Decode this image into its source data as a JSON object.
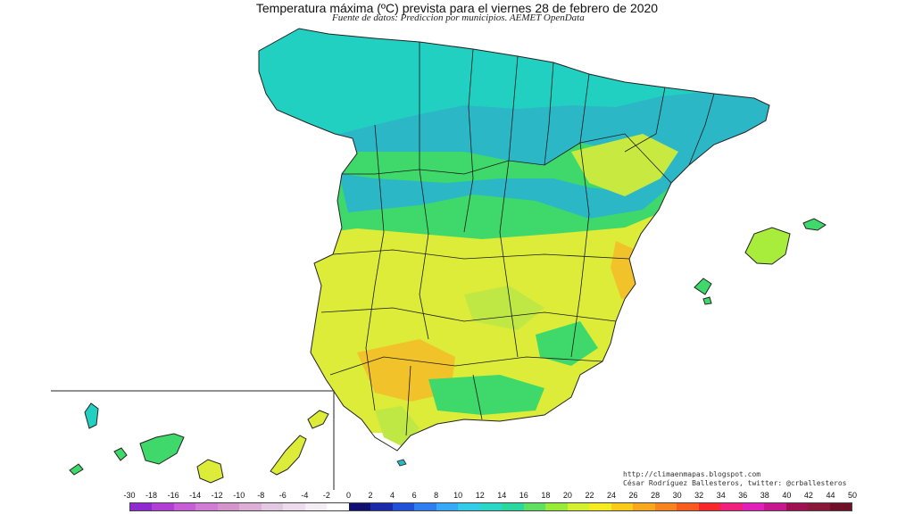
{
  "title": "Temperatura máxima (ºC) prevista para el viernes 28 de febrero de 2020",
  "subtitle": "Fuente de datos: Prediccion por municipios. AEMET OpenData",
  "credits": {
    "url": "http://climaenmapas.blogspot.com",
    "author": "César Rodríguez Ballesteros, twitter: @crballesteros"
  },
  "legend": {
    "labels": [
      "-30",
      "-18",
      "-16",
      "-14",
      "-12",
      "-10",
      "-8",
      "-6",
      "-4",
      "-2",
      "0",
      "2",
      "4",
      "6",
      "8",
      "10",
      "12",
      "14",
      "16",
      "18",
      "20",
      "22",
      "24",
      "26",
      "28",
      "30",
      "32",
      "34",
      "36",
      "38",
      "40",
      "42",
      "44",
      "50"
    ],
    "colors": [
      "#8e2ad0",
      "#b13fd6",
      "#c75ed8",
      "#d07bd4",
      "#d494cc",
      "#dcaed8",
      "#e3c8e2",
      "#ecdcec",
      "#f4eef4",
      "#ffffff",
      "#101070",
      "#1a2aa8",
      "#2050d8",
      "#2f7ef0",
      "#38a8f8",
      "#30cce8",
      "#2ad8c8",
      "#2ad8a0",
      "#60e060",
      "#98ec38",
      "#d4f030",
      "#f4ec20",
      "#f8cc18",
      "#f8a81c",
      "#f88420",
      "#f85c1c",
      "#f8282c",
      "#f0207c",
      "#e020b8",
      "#c81890",
      "#a01050",
      "#8a1838",
      "#701028"
    ]
  },
  "map_colors": {
    "north_cyan": "#22d0c2",
    "teal": "#2bb7c6",
    "green": "#3ed96a",
    "lime": "#a8ec3c",
    "yellow": "#dcec38",
    "orange": "#f2c22a",
    "sea": "#ffffff",
    "border": "#222222"
  }
}
